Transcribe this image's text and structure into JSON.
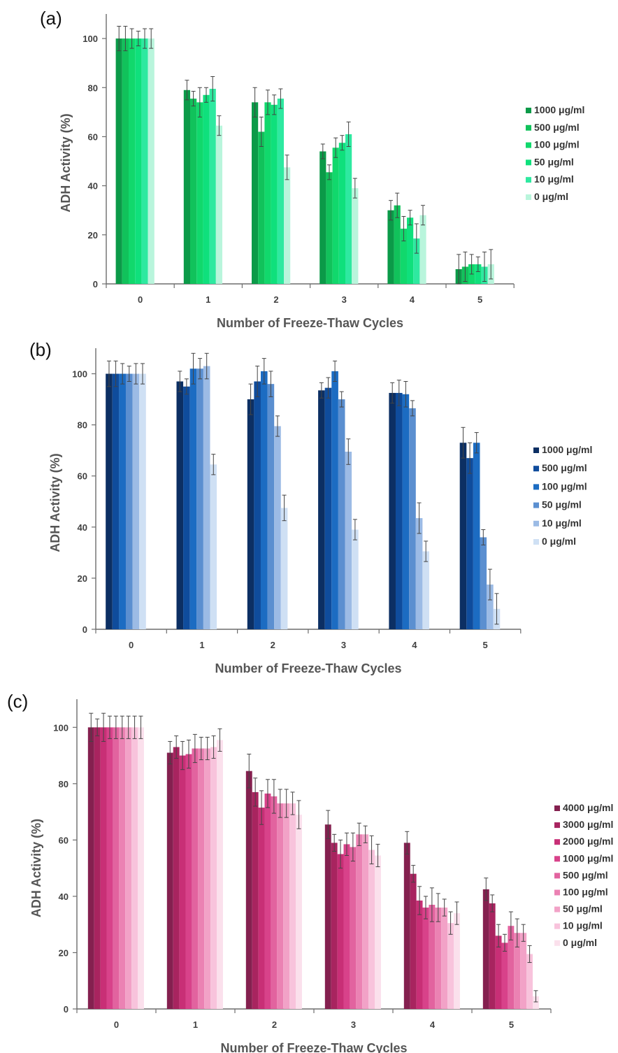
{
  "chart_data": [
    {
      "panel": "(a)",
      "type": "bar",
      "xlabel": "Number of Freeze-Thaw Cycles",
      "ylabel": "ADH Activity (%)",
      "ylim": [
        0,
        110
      ],
      "yticks": [
        "0",
        "20",
        "40",
        "60",
        "80",
        "100"
      ],
      "categories": [
        "0",
        "1",
        "2",
        "3",
        "4",
        "5"
      ],
      "legend_position": "right",
      "series": [
        {
          "name": "1000 μg/ml",
          "color": "#0b9a48",
          "values": [
            100,
            79,
            74,
            54,
            30,
            6
          ],
          "errors": [
            5,
            4,
            6,
            3,
            4,
            6
          ]
        },
        {
          "name": "500 μg/ml",
          "color": "#11c25b",
          "values": [
            100,
            75.5,
            62,
            45.5,
            32,
            7
          ],
          "errors": [
            5,
            3,
            6,
            3,
            5,
            6
          ]
        },
        {
          "name": "100 μg/ml",
          "color": "#11d86c",
          "values": [
            100,
            74,
            74,
            55.5,
            22.5,
            8
          ],
          "errors": [
            4,
            6,
            5,
            4,
            5,
            4
          ]
        },
        {
          "name": "50 μg/ml",
          "color": "#0fe07c",
          "values": [
            100,
            77,
            73,
            57.5,
            27,
            8
          ],
          "errors": [
            3,
            3,
            4,
            3,
            3,
            3
          ]
        },
        {
          "name": "10 μg/ml",
          "color": "#2ee9a0",
          "values": [
            100,
            79.5,
            75.5,
            61,
            18.5,
            7
          ],
          "errors": [
            4,
            5,
            4,
            5,
            6,
            6
          ]
        },
        {
          "name": "0 μg/ml",
          "color": "#b9f5dc",
          "values": [
            100,
            64.5,
            47.5,
            39,
            28,
            8
          ],
          "errors": [
            4,
            4,
            5,
            4,
            4,
            6
          ]
        }
      ]
    },
    {
      "panel": "(b)",
      "type": "bar",
      "xlabel": "Number of Freeze-Thaw Cycles",
      "ylabel": "ADH Activity (%)",
      "ylim": [
        0,
        110
      ],
      "yticks": [
        "0",
        "20",
        "40",
        "60",
        "80",
        "100"
      ],
      "categories": [
        "0",
        "1",
        "2",
        "3",
        "4",
        "5"
      ],
      "legend_position": "right",
      "series": [
        {
          "name": "1000 μg/ml",
          "color": "#0c2f63",
          "values": [
            100,
            97,
            90,
            93.5,
            92.5,
            73
          ],
          "errors": [
            5,
            4,
            6,
            3,
            4,
            6
          ]
        },
        {
          "name": "500 μg/ml",
          "color": "#0f4c9c",
          "values": [
            100,
            95,
            97,
            94.5,
            92.5,
            67
          ],
          "errors": [
            5,
            3,
            6,
            4,
            5,
            6
          ]
        },
        {
          "name": "100 μg/ml",
          "color": "#1c6cc2",
          "values": [
            100,
            102,
            101,
            101,
            92,
            73
          ],
          "errors": [
            4,
            6,
            5,
            4,
            5,
            4
          ]
        },
        {
          "name": "50 μg/ml",
          "color": "#5b8fd0",
          "values": [
            100,
            102,
            96,
            90,
            86.5,
            36
          ],
          "errors": [
            3,
            4,
            5,
            3,
            3,
            3
          ]
        },
        {
          "name": "10 μg/ml",
          "color": "#9cbbe5",
          "values": [
            100,
            103,
            79.5,
            69.5,
            43.5,
            17.5
          ],
          "errors": [
            4,
            5,
            4,
            5,
            6,
            6
          ]
        },
        {
          "name": "0 μg/ml",
          "color": "#cfe0f4",
          "values": [
            100,
            64.5,
            47.5,
            39,
            30.5,
            8
          ],
          "errors": [
            4,
            4,
            5,
            4,
            4,
            6
          ]
        }
      ]
    },
    {
      "panel": "(c)",
      "type": "bar",
      "xlabel": "Number of Freeze-Thaw Cycles",
      "ylabel": "ADH Activity (%)",
      "ylim": [
        0,
        110
      ],
      "yticks": [
        "0",
        "20",
        "40",
        "60",
        "80",
        "100"
      ],
      "categories": [
        "0",
        "1",
        "2",
        "3",
        "4",
        "5"
      ],
      "legend_position": "right",
      "series": [
        {
          "name": "4000 μg/ml",
          "color": "#84204f",
          "values": [
            100,
            91,
            84.5,
            65.5,
            59,
            42.5
          ],
          "errors": [
            5,
            4,
            6,
            5,
            4,
            4
          ]
        },
        {
          "name": "3000 μg/ml",
          "color": "#a8245f",
          "values": [
            100,
            93,
            77,
            59,
            48,
            37.5
          ],
          "errors": [
            3,
            4,
            5,
            3,
            3,
            3
          ]
        },
        {
          "name": "2000 μg/ml",
          "color": "#c82f76",
          "values": [
            100,
            90,
            71.5,
            55,
            38.5,
            26
          ],
          "errors": [
            5,
            5,
            6,
            5,
            5,
            4
          ]
        },
        {
          "name": "1000 μg/ml",
          "color": "#d8428a",
          "values": [
            100,
            90.5,
            76.5,
            58.5,
            36,
            23.5
          ],
          "errors": [
            4,
            5,
            5,
            4,
            4,
            3
          ]
        },
        {
          "name": "500 μg/ml",
          "color": "#e2639f",
          "values": [
            100,
            92.5,
            75.5,
            57.5,
            37,
            29.5
          ],
          "errors": [
            4,
            5,
            6,
            5,
            6,
            5
          ]
        },
        {
          "name": "100 μg/ml",
          "color": "#eb82b3",
          "values": [
            100,
            92.5,
            73,
            62,
            36,
            27
          ],
          "errors": [
            4,
            4,
            5,
            4,
            5,
            5
          ]
        },
        {
          "name": "50 μg/ml",
          "color": "#f2a2c7",
          "values": [
            100,
            92.5,
            73,
            62,
            36,
            27
          ],
          "errors": [
            4,
            4,
            5,
            3,
            3,
            3
          ]
        },
        {
          "name": "10 μg/ml",
          "color": "#f8c3dc",
          "values": [
            100,
            93,
            73,
            56.5,
            30.5,
            19.5
          ],
          "errors": [
            4,
            4,
            4,
            5,
            4,
            3
          ]
        },
        {
          "name": "0 μg/ml",
          "color": "#fbe0ec",
          "values": [
            100,
            95.5,
            69,
            54.5,
            34,
            4.5
          ],
          "errors": [
            4,
            4,
            5,
            4,
            4,
            2
          ]
        }
      ]
    }
  ]
}
